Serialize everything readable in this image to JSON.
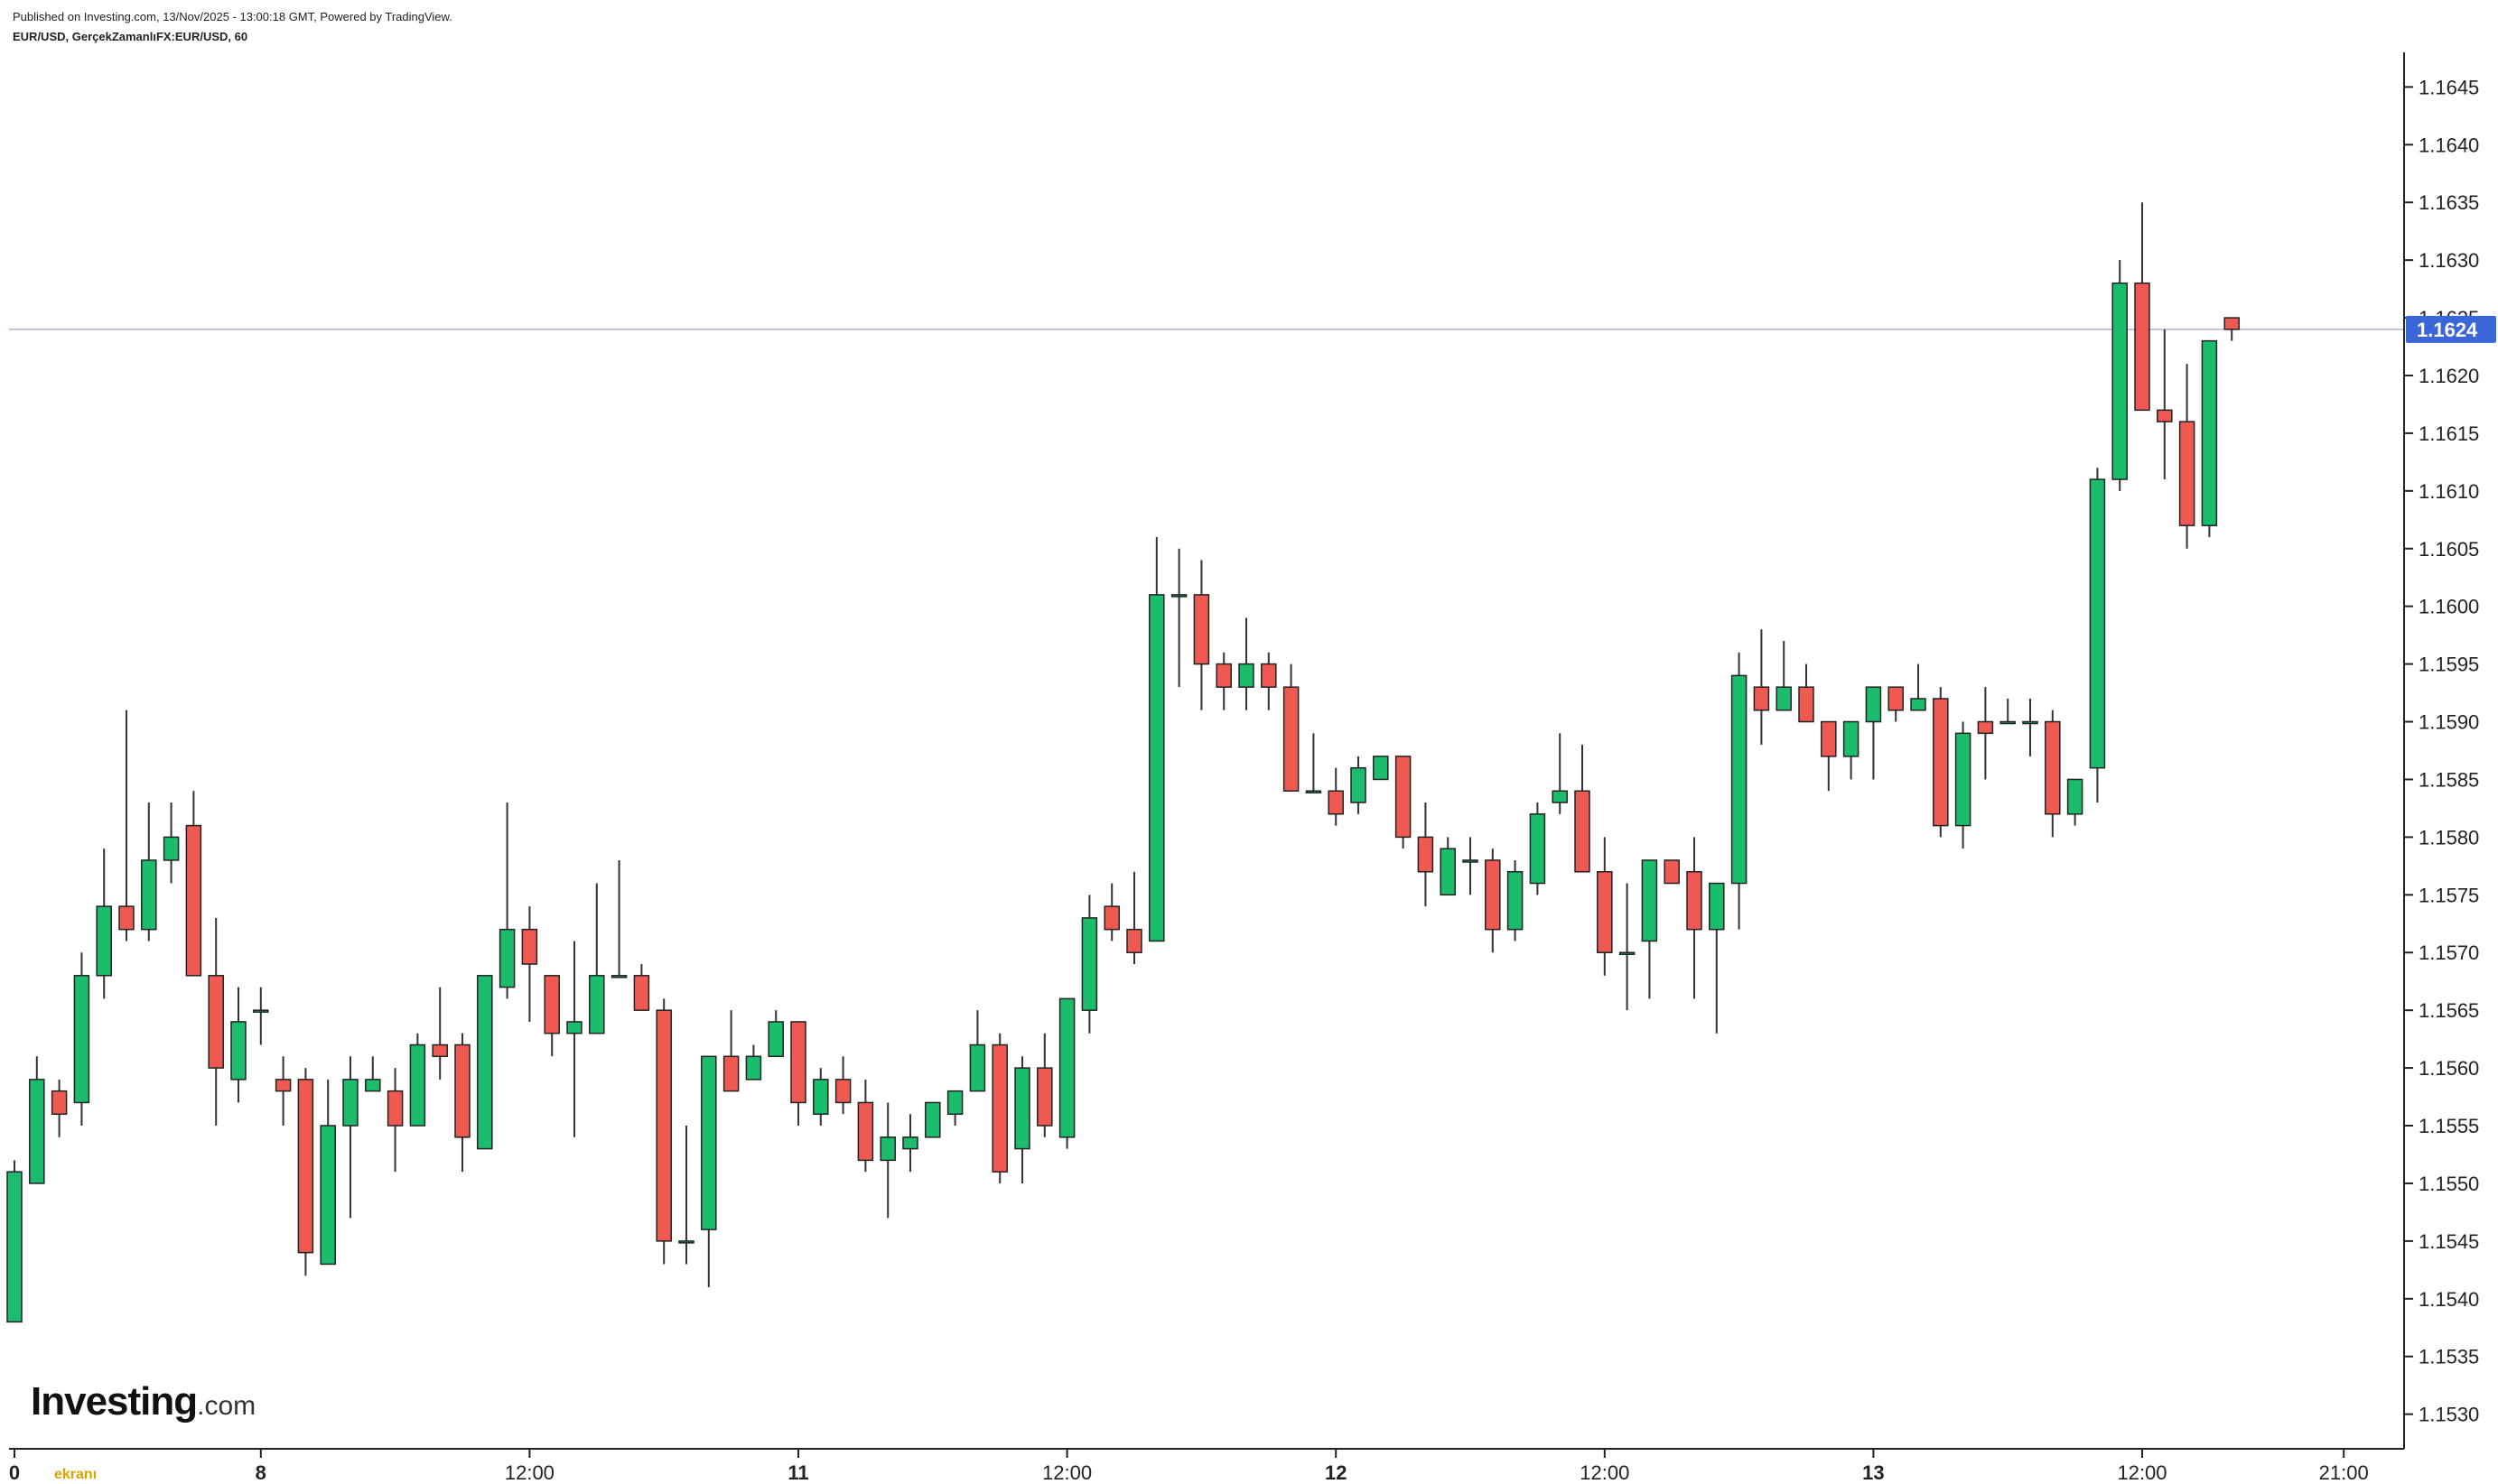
{
  "header": {
    "published": "Published on Investing.com, 13/Nov/2025 - 13:00:18 GMT, Powered by TradingView.",
    "symbol": "EUR/USD, GerçekZamanlıFX:EUR/USD, 60"
  },
  "logo": {
    "brand": "Investing",
    "suffix": ".com"
  },
  "watermark": "ekranı",
  "colors": {
    "up": "#1bbc6c",
    "down": "#ee5a52",
    "wick": "#333333",
    "border": "#222222",
    "price_line": "#aab0d6",
    "price_badge": "#3a66d9",
    "axis": "#222222"
  },
  "chart_data": {
    "type": "candlestick",
    "timeframe_minutes": 60,
    "ylim": [
      1.1527,
      1.1648
    ],
    "y_ticks": [
      "1.1530",
      "1.1535",
      "1.1540",
      "1.1545",
      "1.1550",
      "1.1555",
      "1.1560",
      "1.1565",
      "1.1570",
      "1.1575",
      "1.1580",
      "1.1585",
      "1.1590",
      "1.1595",
      "1.1600",
      "1.1605",
      "1.1610",
      "1.1615",
      "1.1620",
      "1.1625",
      "1.1630",
      "1.1635",
      "1.1640",
      "1.1645"
    ],
    "x_ticks": [
      {
        "label": "0",
        "index": 0
      },
      {
        "label": "8",
        "index": 11
      },
      {
        "label": "12:00",
        "index": 23
      },
      {
        "label": "11",
        "index": 35
      },
      {
        "label": "12:00",
        "index": 47
      },
      {
        "label": "12",
        "index": 59
      },
      {
        "label": "12:00",
        "index": 71
      },
      {
        "label": "13",
        "index": 83
      },
      {
        "label": "12:00",
        "index": 95
      },
      {
        "label": "21:00",
        "index": 104
      }
    ],
    "last_price": "1.1624",
    "candles": [
      [
        1.1538,
        1.1552,
        1.1538,
        1.1551
      ],
      [
        1.155,
        1.1561,
        1.155,
        1.1559
      ],
      [
        1.1558,
        1.1559,
        1.1554,
        1.1556
      ],
      [
        1.1557,
        1.157,
        1.1555,
        1.1568
      ],
      [
        1.1568,
        1.1579,
        1.1566,
        1.1574
      ],
      [
        1.1574,
        1.1591,
        1.1571,
        1.1572
      ],
      [
        1.1572,
        1.1583,
        1.1571,
        1.1578
      ],
      [
        1.1578,
        1.1583,
        1.1576,
        1.158
      ],
      [
        1.1581,
        1.1584,
        1.1568,
        1.1568
      ],
      [
        1.1568,
        1.1573,
        1.1555,
        1.156
      ],
      [
        1.1559,
        1.1567,
        1.1557,
        1.1564
      ],
      [
        1.1565,
        1.1567,
        1.1562,
        1.1565
      ],
      [
        1.1559,
        1.1561,
        1.1555,
        1.1558
      ],
      [
        1.1559,
        1.156,
        1.1542,
        1.1544
      ],
      [
        1.1543,
        1.1559,
        1.1543,
        1.1555
      ],
      [
        1.1555,
        1.1561,
        1.1547,
        1.1559
      ],
      [
        1.1558,
        1.1561,
        1.1558,
        1.1559
      ],
      [
        1.1558,
        1.156,
        1.1551,
        1.1555
      ],
      [
        1.1555,
        1.1563,
        1.1555,
        1.1562
      ],
      [
        1.1562,
        1.1567,
        1.1559,
        1.1561
      ],
      [
        1.1562,
        1.1563,
        1.1551,
        1.1554
      ],
      [
        1.1553,
        1.1568,
        1.1553,
        1.1568
      ],
      [
        1.1567,
        1.1583,
        1.1566,
        1.1572
      ],
      [
        1.1572,
        1.1574,
        1.1564,
        1.1569
      ],
      [
        1.1568,
        1.1568,
        1.1561,
        1.1563
      ],
      [
        1.1563,
        1.1571,
        1.1554,
        1.1564
      ],
      [
        1.1563,
        1.1576,
        1.1563,
        1.1568
      ],
      [
        1.1568,
        1.1578,
        1.1568,
        1.1568
      ],
      [
        1.1568,
        1.1569,
        1.1565,
        1.1565
      ],
      [
        1.1565,
        1.1566,
        1.1543,
        1.1545
      ],
      [
        1.1545,
        1.1555,
        1.1543,
        1.1545
      ],
      [
        1.1546,
        1.1561,
        1.1541,
        1.1561
      ],
      [
        1.1561,
        1.1565,
        1.1558,
        1.1558
      ],
      [
        1.1559,
        1.1562,
        1.1559,
        1.1561
      ],
      [
        1.1561,
        1.1565,
        1.1561,
        1.1564
      ],
      [
        1.1564,
        1.1564,
        1.1555,
        1.1557
      ],
      [
        1.1556,
        1.156,
        1.1555,
        1.1559
      ],
      [
        1.1559,
        1.1561,
        1.1556,
        1.1557
      ],
      [
        1.1557,
        1.1559,
        1.1551,
        1.1552
      ],
      [
        1.1552,
        1.1557,
        1.1547,
        1.1554
      ],
      [
        1.1553,
        1.1556,
        1.1551,
        1.1554
      ],
      [
        1.1554,
        1.1557,
        1.1554,
        1.1557
      ],
      [
        1.1556,
        1.1558,
        1.1555,
        1.1558
      ],
      [
        1.1558,
        1.1565,
        1.1558,
        1.1562
      ],
      [
        1.1562,
        1.1563,
        1.155,
        1.1551
      ],
      [
        1.1553,
        1.1561,
        1.155,
        1.156
      ],
      [
        1.156,
        1.1563,
        1.1554,
        1.1555
      ],
      [
        1.1554,
        1.1566,
        1.1553,
        1.1566
      ],
      [
        1.1565,
        1.1575,
        1.1563,
        1.1573
      ],
      [
        1.1574,
        1.1576,
        1.1571,
        1.1572
      ],
      [
        1.1572,
        1.1577,
        1.1569,
        1.157
      ],
      [
        1.1571,
        1.1606,
        1.1571,
        1.1601
      ],
      [
        1.1601,
        1.1605,
        1.1593,
        1.1601
      ],
      [
        1.1601,
        1.1604,
        1.1591,
        1.1595
      ],
      [
        1.1595,
        1.1596,
        1.1591,
        1.1593
      ],
      [
        1.1593,
        1.1599,
        1.1591,
        1.1595
      ],
      [
        1.1595,
        1.1596,
        1.1591,
        1.1593
      ],
      [
        1.1593,
        1.1595,
        1.1584,
        1.1584
      ],
      [
        1.1584,
        1.1589,
        1.1584,
        1.1584
      ],
      [
        1.1584,
        1.1586,
        1.1581,
        1.1582
      ],
      [
        1.1583,
        1.1587,
        1.1582,
        1.1586
      ],
      [
        1.1585,
        1.1587,
        1.1585,
        1.1587
      ],
      [
        1.1587,
        1.1587,
        1.1579,
        1.158
      ],
      [
        1.158,
        1.1583,
        1.1574,
        1.1577
      ],
      [
        1.1575,
        1.158,
        1.1575,
        1.1579
      ],
      [
        1.1578,
        1.158,
        1.1575,
        1.1578
      ],
      [
        1.1578,
        1.1579,
        1.157,
        1.1572
      ],
      [
        1.1572,
        1.1578,
        1.1571,
        1.1577
      ],
      [
        1.1576,
        1.1583,
        1.1575,
        1.1582
      ],
      [
        1.1583,
        1.1589,
        1.1582,
        1.1584
      ],
      [
        1.1584,
        1.1588,
        1.1577,
        1.1577
      ],
      [
        1.1577,
        1.158,
        1.1568,
        1.157
      ],
      [
        1.157,
        1.1576,
        1.1565,
        1.157
      ],
      [
        1.1571,
        1.1578,
        1.1566,
        1.1578
      ],
      [
        1.1578,
        1.1578,
        1.1576,
        1.1576
      ],
      [
        1.1577,
        1.158,
        1.1566,
        1.1572
      ],
      [
        1.1572,
        1.1576,
        1.1563,
        1.1576
      ],
      [
        1.1576,
        1.1596,
        1.1572,
        1.1594
      ],
      [
        1.1593,
        1.1598,
        1.1588,
        1.1591
      ],
      [
        1.1591,
        1.1597,
        1.1591,
        1.1593
      ],
      [
        1.1593,
        1.1595,
        1.159,
        1.159
      ],
      [
        1.159,
        1.159,
        1.1584,
        1.1587
      ],
      [
        1.1587,
        1.159,
        1.1585,
        1.159
      ],
      [
        1.159,
        1.1593,
        1.1585,
        1.1593
      ],
      [
        1.1593,
        1.1593,
        1.159,
        1.1591
      ],
      [
        1.1591,
        1.1595,
        1.1591,
        1.1592
      ],
      [
        1.1592,
        1.1593,
        1.158,
        1.1581
      ],
      [
        1.1581,
        1.159,
        1.1579,
        1.1589
      ],
      [
        1.159,
        1.1593,
        1.1585,
        1.1589
      ],
      [
        1.159,
        1.1592,
        1.159,
        1.159
      ],
      [
        1.159,
        1.1592,
        1.1587,
        1.159
      ],
      [
        1.159,
        1.1591,
        1.158,
        1.1582
      ],
      [
        1.1582,
        1.1585,
        1.1581,
        1.1585
      ],
      [
        1.1586,
        1.1612,
        1.1583,
        1.1611
      ],
      [
        1.1611,
        1.163,
        1.161,
        1.1628
      ],
      [
        1.1628,
        1.1635,
        1.1617,
        1.1617
      ],
      [
        1.1617,
        1.1624,
        1.1611,
        1.1616
      ],
      [
        1.1616,
        1.1621,
        1.1605,
        1.1607
      ],
      [
        1.1607,
        1.1623,
        1.1606,
        1.1623
      ],
      [
        1.1625,
        1.1625,
        1.1623,
        1.1624
      ]
    ]
  }
}
